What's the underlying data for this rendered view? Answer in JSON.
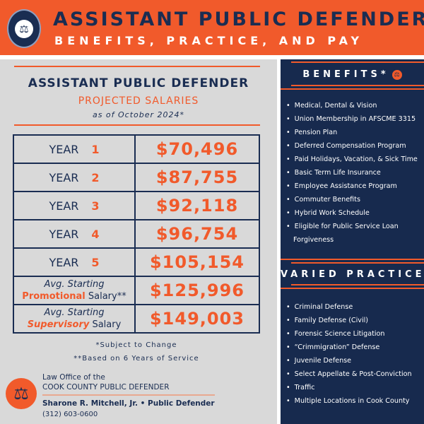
{
  "header": {
    "title": "ASSISTANT PUBLIC DEFENDER",
    "subtitle": "BENEFITS, PRACTICE, AND PAY",
    "seal_text": "COOK COUNTY PUBLIC DEFENDER"
  },
  "salaries": {
    "title": "ASSISTANT PUBLIC DEFENDER",
    "subtitle": "PROJECTED SALARIES",
    "as_of": "as of October 2024*",
    "rows": [
      {
        "label": "YEAR",
        "num": "1",
        "amount": "$70,496"
      },
      {
        "label": "YEAR",
        "num": "2",
        "amount": "$87,755"
      },
      {
        "label": "YEAR",
        "num": "3",
        "amount": "$92,118"
      },
      {
        "label": "YEAR",
        "num": "4",
        "amount": "$96,754"
      },
      {
        "label": "YEAR",
        "num": "5",
        "amount": "$105,154"
      }
    ],
    "promo": {
      "pre": "Avg. Starting",
      "hl": "Promotional",
      "post": " Salary**",
      "amount": "$125,996"
    },
    "super": {
      "pre": "Avg. Starting",
      "hl": "Supervisory",
      "post": " Salary",
      "amount": "$149,003"
    },
    "note1": "*Subject to Change",
    "note2": "**Based on 6 Years of Service"
  },
  "footer": {
    "line1": "Law Office of the",
    "line2": "COOK COUNTY PUBLIC DEFENDER",
    "name": "Sharone R. Mitchell, Jr.  •   Public Defender",
    "phone": "(312) 603-0600"
  },
  "benefits": {
    "heading": "BENEFITS*",
    "items": [
      "Medical, Dental & Vision",
      "Union Membership in AFSCME 3315",
      "Pension Plan",
      "Deferred Compensation Program",
      "Paid Holidays, Vacation, & Sick Time",
      "Basic Term Life Insurance",
      "Employee Assistance Program",
      "Commuter Benefits",
      "Hybrid Work Schedule",
      "Eligible for Public Service Loan"
    ],
    "cont": "Forgiveness"
  },
  "practice": {
    "heading": "VARIED PRACTICE",
    "items": [
      "Criminal Defense",
      "Family Defense (Civil)",
      "Forensic Science Litigation",
      "“Crimmigration” Defense",
      "Juvenile Defense",
      "Select Appellate & Post-Conviction",
      "Traffic",
      "Multiple Locations in Cook County"
    ]
  },
  "colors": {
    "orange": "#f15a2b",
    "navy": "#172a4e",
    "gray": "#d9d9d9"
  }
}
